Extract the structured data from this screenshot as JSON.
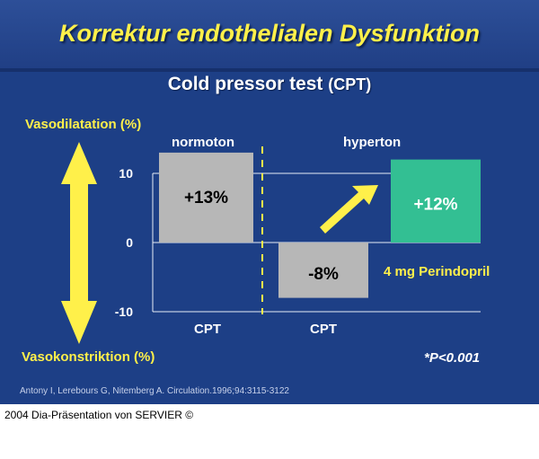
{
  "slide": {
    "title": "Korrektur endothelialen Dysfunktion",
    "subtitle_main": "Cold pressor test",
    "subtitle_paren": "(CPT)",
    "y_label_top": "Vasodilatation (%)",
    "y_label_bottom": "Vasokonstriktion (%)",
    "significance": "*P<0.001",
    "perindopril_note": "4 mg Perindopril",
    "citation": "Antony I, Lerebours G, Nitemberg A. Circulation.1996;94:3115-3122",
    "footer": "2004 Dia-Präsentation von SERVIER ©"
  },
  "colors": {
    "background": "#1d3f86",
    "title": "#fff04a",
    "bar_gray": "#b7b7b7",
    "bar_green": "#33bf93",
    "arrow_yellow": "#fff04a"
  },
  "chart_data": {
    "type": "bar",
    "ylim": [
      -10,
      10
    ],
    "yticks": [
      "10",
      "0",
      "-10"
    ],
    "groups": [
      "normoton",
      "hyperton"
    ],
    "x_labels": [
      "CPT",
      "CPT"
    ],
    "bars": [
      {
        "group": "normoton",
        "label": "+13%",
        "value": 13,
        "color": "#b7b7b7"
      },
      {
        "group": "hyperton",
        "label": "-8%",
        "value": -8,
        "color": "#b7b7b7"
      },
      {
        "group": "hyperton",
        "label": "+12%",
        "value": 12,
        "color": "#33bf93",
        "note": "4 mg Perindopril"
      }
    ]
  }
}
